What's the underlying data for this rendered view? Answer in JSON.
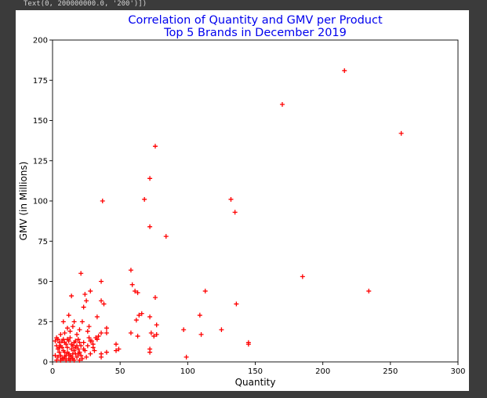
{
  "output": {
    "text": "Text(0, 200000000.0, '200')])"
  },
  "chart_data": {
    "type": "scatter",
    "title_lines": [
      "Correlation of Quantity and GMV per Product",
      "Top 5 Brands in December 2019"
    ],
    "xlabel": "Quantity",
    "ylabel": "GMV (in Millions)",
    "xlim": [
      0,
      300
    ],
    "ylim": [
      0,
      200
    ],
    "xticks": [
      0,
      50,
      100,
      150,
      200,
      250,
      300
    ],
    "yticks": [
      0,
      25,
      50,
      75,
      100,
      125,
      150,
      175,
      200
    ],
    "marker": "+",
    "color": "#ff0000",
    "grid": false,
    "points": [
      [
        216,
        181
      ],
      [
        258,
        142
      ],
      [
        170,
        160
      ],
      [
        76,
        134
      ],
      [
        72,
        114
      ],
      [
        37,
        100
      ],
      [
        68,
        101
      ],
      [
        132,
        101
      ],
      [
        135,
        93
      ],
      [
        72,
        84
      ],
      [
        84,
        78
      ],
      [
        58,
        57
      ],
      [
        21,
        55
      ],
      [
        185,
        53
      ],
      [
        36,
        50
      ],
      [
        59,
        48
      ],
      [
        61,
        44
      ],
      [
        63,
        43
      ],
      [
        113,
        44
      ],
      [
        234,
        44
      ],
      [
        28,
        44
      ],
      [
        24,
        42
      ],
      [
        14,
        41
      ],
      [
        76,
        40
      ],
      [
        25,
        38
      ],
      [
        36,
        38
      ],
      [
        38,
        36
      ],
      [
        136,
        36
      ],
      [
        23,
        34
      ],
      [
        66,
        30
      ],
      [
        64,
        29
      ],
      [
        109,
        29
      ],
      [
        12,
        29
      ],
      [
        33,
        28
      ],
      [
        72,
        28
      ],
      [
        62,
        26
      ],
      [
        8,
        25
      ],
      [
        22,
        25
      ],
      [
        77,
        23
      ],
      [
        16,
        25
      ],
      [
        27,
        22
      ],
      [
        40,
        21
      ],
      [
        97,
        20
      ],
      [
        125,
        20
      ],
      [
        40,
        18
      ],
      [
        36,
        18
      ],
      [
        58,
        18
      ],
      [
        73,
        18
      ],
      [
        77,
        17
      ],
      [
        110,
        17
      ],
      [
        63,
        16
      ],
      [
        75,
        16
      ],
      [
        27,
        15
      ],
      [
        33,
        14
      ],
      [
        145,
        12
      ],
      [
        145,
        11
      ],
      [
        47,
        11
      ],
      [
        29,
        13
      ],
      [
        20,
        12
      ],
      [
        30,
        11
      ],
      [
        49,
        8
      ],
      [
        47,
        7
      ],
      [
        72,
        8
      ],
      [
        72,
        6
      ],
      [
        36,
        5
      ],
      [
        36,
        3
      ],
      [
        99,
        3
      ],
      [
        40,
        6
      ],
      [
        31,
        7
      ],
      [
        28,
        5
      ],
      [
        25,
        3
      ],
      [
        24,
        7
      ],
      [
        2,
        13
      ],
      [
        3,
        10
      ],
      [
        4,
        8
      ],
      [
        5,
        12
      ],
      [
        6,
        4
      ],
      [
        7,
        9
      ],
      [
        8,
        14
      ],
      [
        9,
        3
      ],
      [
        10,
        11
      ],
      [
        11,
        6
      ],
      [
        12,
        2
      ],
      [
        13,
        15
      ],
      [
        14,
        8
      ],
      [
        15,
        5
      ],
      [
        16,
        12
      ],
      [
        17,
        9
      ],
      [
        18,
        3
      ],
      [
        19,
        14
      ],
      [
        20,
        6
      ],
      [
        21,
        10
      ],
      [
        22,
        2
      ],
      [
        23,
        12
      ],
      [
        2,
        4
      ],
      [
        3,
        1
      ],
      [
        4,
        14
      ],
      [
        5,
        6
      ],
      [
        6,
        10
      ],
      [
        7,
        2
      ],
      [
        8,
        7
      ],
      [
        9,
        12
      ],
      [
        10,
        4
      ],
      [
        11,
        9
      ],
      [
        12,
        13
      ],
      [
        13,
        1
      ],
      [
        14,
        11
      ],
      [
        15,
        2
      ],
      [
        16,
        7
      ],
      [
        17,
        13
      ],
      [
        18,
        10
      ],
      [
        19,
        5
      ],
      [
        20,
        1
      ],
      [
        4,
        3
      ],
      [
        6,
        1
      ],
      [
        8,
        2
      ],
      [
        10,
        1
      ],
      [
        12,
        5
      ],
      [
        14,
        3
      ],
      [
        16,
        1
      ],
      [
        5,
        9
      ],
      [
        7,
        13
      ],
      [
        9,
        6
      ],
      [
        11,
        14
      ],
      [
        13,
        4
      ],
      [
        15,
        10
      ],
      [
        17,
        5
      ],
      [
        19,
        8
      ],
      [
        21,
        4
      ],
      [
        23,
        8
      ],
      [
        26,
        10
      ],
      [
        28,
        13
      ],
      [
        30,
        9
      ],
      [
        32,
        15
      ],
      [
        34,
        16
      ],
      [
        26,
        19
      ],
      [
        18,
        17
      ],
      [
        13,
        19
      ],
      [
        11,
        21
      ],
      [
        15,
        22
      ],
      [
        20,
        20
      ],
      [
        9,
        18
      ],
      [
        6,
        17
      ],
      [
        3,
        15
      ]
    ]
  }
}
